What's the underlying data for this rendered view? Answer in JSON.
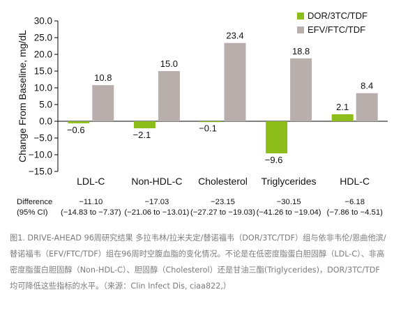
{
  "chart_data": {
    "type": "bar",
    "ylabel": "Change From Baseline, mg/dL",
    "ylim": [
      -15,
      30
    ],
    "yticks": [
      "30.0",
      "25.0",
      "20.0",
      "15.0",
      "10.0",
      "5.0",
      "0.0",
      "−5.0",
      "−10.0",
      "−15.0"
    ],
    "ytick_values": [
      30,
      25,
      20,
      15,
      10,
      5,
      0,
      -5,
      -10,
      -15
    ],
    "categories": [
      "LDL-C",
      "Non-HDL-C",
      "Cholesterol",
      "Triglycerides",
      "HDL-C"
    ],
    "series": [
      {
        "name": "DOR/3TC/TDF",
        "color": "#8cbd1a",
        "values": [
          -0.6,
          -2.1,
          -0.1,
          -9.6,
          2.1
        ],
        "labels": [
          "−0.6",
          "−2.1",
          "−0.1",
          "−9.6",
          "2.1"
        ]
      },
      {
        "name": "EFV/FTC/TDF",
        "color": "#b8aeac",
        "values": [
          10.8,
          15.0,
          23.4,
          18.8,
          8.4
        ],
        "labels": [
          "10.8",
          "15.0",
          "23.4",
          "18.8",
          "8.4"
        ]
      }
    ],
    "legend_position": "top-right",
    "grid": false
  },
  "difference": {
    "label_line1": "Difference",
    "label_line2": "(95% CI)",
    "values": [
      "−11.10",
      "−17.03",
      "−23.15",
      "−30.15",
      "−6.18"
    ],
    "ci": [
      "(−14.83 to −7.37)",
      "(−21.06 to −13.01)",
      "(−27.27 to −19.03)",
      "(−41.26 to −19.04)",
      "(−7.86 to −4.51)"
    ]
  },
  "caption": "图1. DRIVE-AHEAD 96周研究结果 多拉韦林/拉米夫定/替诺福韦（DOR/3TC/TDF）组与依非韦伦/恩曲他滨/替诺福韦（EFV/FTC/TDF）组在96周时空腹血脂的变化情况。不论是在低密度脂蛋白胆固醇（LDL-C）、非高密度脂蛋白胆固醇（Non-HDL-C）、胆固醇（Cholesterol）还是甘油三酯(Triglycerides)，DOR/3TC/TDF均可降低这些指标的水平。（来源：Clin Infect Dis, ciaa822,）"
}
